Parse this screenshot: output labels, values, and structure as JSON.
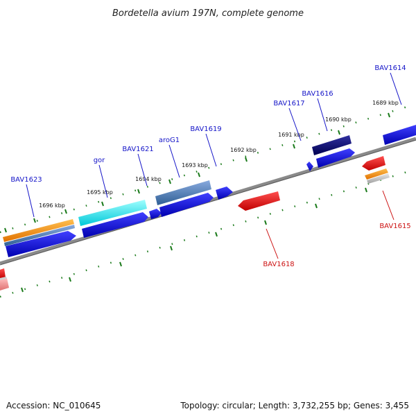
{
  "title": "Bordetella avium 197N, complete genome",
  "footer": {
    "accession": "Accession: NC_010645",
    "stats": "Topology: circular; Length: 3,732,255 bp; Genes: 3,455"
  },
  "colors": {
    "backbone": "#808080",
    "tick": "#1a7a1a",
    "label_top": "#1414c8",
    "label_bottom": "#cc1111"
  },
  "ruler": [
    {
      "label": "1696 kbp"
    },
    {
      "label": "1695 kbp"
    },
    {
      "label": "1694 kbp"
    },
    {
      "label": "1693 kbp"
    },
    {
      "label": "1692 kbp"
    },
    {
      "label": "1691 kbp"
    },
    {
      "label": "1690 kbp"
    },
    {
      "label": "1689 kbp"
    }
  ],
  "gene_labels": [
    {
      "text": "BAV1623",
      "strand": "forward"
    },
    {
      "text": "gor",
      "strand": "forward"
    },
    {
      "text": "BAV1621",
      "strand": "forward"
    },
    {
      "text": "aroG1",
      "strand": "forward"
    },
    {
      "text": "BAV1619",
      "strand": "forward"
    },
    {
      "text": "BAV1617",
      "strand": "forward"
    },
    {
      "text": "BAV1616",
      "strand": "forward"
    },
    {
      "text": "BAV1614",
      "strand": "forward"
    },
    {
      "text": "BAV1618",
      "strand": "reverse"
    },
    {
      "text": "BAV1615",
      "strand": "reverse"
    }
  ]
}
